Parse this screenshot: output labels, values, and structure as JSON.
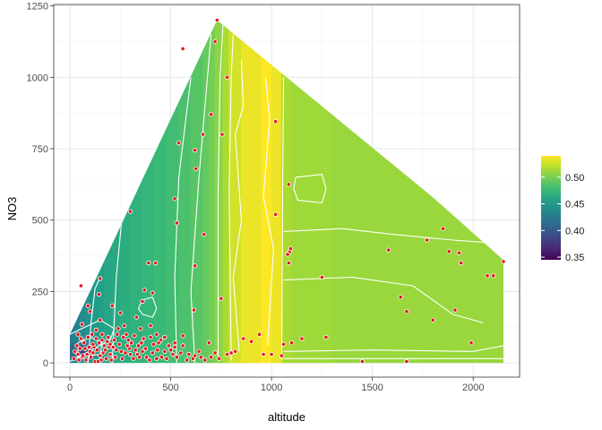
{
  "chart_data": {
    "type": "heatmap",
    "title": "",
    "xlabel": "altitude",
    "ylabel": "NO3",
    "xlim": [
      -80,
      2230
    ],
    "ylim": [
      -50,
      1255
    ],
    "x_ticks": [
      0,
      500,
      1000,
      1500,
      2000
    ],
    "y_ticks": [
      0,
      250,
      500,
      750,
      1000,
      1250
    ],
    "x_tick_labels": [
      "0",
      "500",
      "1000",
      "1500",
      "2000"
    ],
    "y_tick_labels": [
      "0",
      "250",
      "500",
      "750",
      "1000",
      "1250"
    ],
    "colorscale": "viridis",
    "color_range": [
      0.345,
      0.54
    ],
    "legend": {
      "placement": "right",
      "ticks": [
        0.35,
        0.4,
        0.45,
        0.5
      ],
      "tick_labels": [
        "0.35",
        "0.40",
        "0.45",
        "0.50"
      ]
    },
    "grid": true,
    "contour_color": "#ffffff",
    "point_fill": "#e31a1c",
    "point_stroke": "#ffffff",
    "hull": [
      [
        0,
        0
      ],
      [
        2150,
        0
      ],
      [
        2150,
        360
      ],
      [
        1800,
        580
      ],
      [
        730,
        1200
      ],
      [
        0,
        100
      ]
    ],
    "band_edges": [
      0,
      50,
      80,
      110,
      140,
      170,
      210,
      250,
      300,
      360,
      420,
      480,
      540,
      600,
      660,
      690,
      720,
      760,
      790,
      850,
      950,
      1000,
      1050,
      1060,
      1100,
      1300,
      1600,
      1900,
      2150
    ],
    "band_values": [
      0.43,
      0.44,
      0.445,
      0.45,
      0.455,
      0.46,
      0.463,
      0.466,
      0.47,
      0.474,
      0.477,
      0.48,
      0.484,
      0.488,
      0.493,
      0.498,
      0.506,
      0.515,
      0.527,
      0.535,
      0.54,
      0.535,
      0.52,
      0.515,
      0.512,
      0.51,
      0.51,
      0.51
    ],
    "low_spot": {
      "x": 65,
      "y": 45,
      "radius": 70,
      "min_value": 0.345
    },
    "points": [
      [
        730,
        1200
      ],
      [
        560,
        1100
      ],
      [
        720,
        1125
      ],
      [
        780,
        1000
      ],
      [
        700,
        870
      ],
      [
        660,
        800
      ],
      [
        755,
        800
      ],
      [
        540,
        770
      ],
      [
        620,
        745
      ],
      [
        625,
        680
      ],
      [
        1020,
        845
      ],
      [
        1085,
        625
      ],
      [
        520,
        575
      ],
      [
        300,
        530
      ],
      [
        1020,
        520
      ],
      [
        665,
        450
      ],
      [
        530,
        490
      ],
      [
        1090,
        390
      ],
      [
        1095,
        400
      ],
      [
        1085,
        350
      ],
      [
        1080,
        380
      ],
      [
        1770,
        430
      ],
      [
        1850,
        470
      ],
      [
        1580,
        395
      ],
      [
        1880,
        390
      ],
      [
        1930,
        385
      ],
      [
        1940,
        350
      ],
      [
        2150,
        355
      ],
      [
        2070,
        305
      ],
      [
        2100,
        305
      ],
      [
        1640,
        230
      ],
      [
        1800,
        150
      ],
      [
        1670,
        180
      ],
      [
        1910,
        185
      ],
      [
        1990,
        70
      ],
      [
        1250,
        300
      ],
      [
        390,
        350
      ],
      [
        425,
        350
      ],
      [
        370,
        255
      ],
      [
        410,
        245
      ],
      [
        360,
        215
      ],
      [
        620,
        340
      ],
      [
        615,
        185
      ],
      [
        750,
        225
      ],
      [
        940,
        100
      ],
      [
        900,
        75
      ],
      [
        860,
        85
      ],
      [
        780,
        30
      ],
      [
        1060,
        65
      ],
      [
        1150,
        85
      ],
      [
        1100,
        70
      ],
      [
        1270,
        90
      ],
      [
        960,
        30
      ],
      [
        1000,
        30
      ],
      [
        1050,
        25
      ],
      [
        1450,
        5
      ],
      [
        1670,
        5
      ],
      [
        820,
        40
      ],
      [
        800,
        35
      ],
      [
        720,
        35
      ],
      [
        690,
        70
      ],
      [
        640,
        40
      ],
      [
        620,
        25
      ],
      [
        580,
        10
      ],
      [
        40,
        100
      ],
      [
        60,
        135
      ],
      [
        55,
        270
      ],
      [
        150,
        295
      ],
      [
        145,
        240
      ],
      [
        90,
        200
      ],
      [
        100,
        180
      ],
      [
        150,
        150
      ],
      [
        210,
        200
      ],
      [
        250,
        175
      ],
      [
        240,
        120
      ],
      [
        270,
        130
      ],
      [
        280,
        100
      ],
      [
        290,
        80
      ],
      [
        320,
        95
      ],
      [
        340,
        60
      ],
      [
        360,
        40
      ],
      [
        380,
        20
      ],
      [
        410,
        35
      ],
      [
        430,
        15
      ],
      [
        450,
        80
      ],
      [
        470,
        40
      ],
      [
        490,
        60
      ],
      [
        510,
        30
      ],
      [
        530,
        20
      ],
      [
        550,
        35
      ],
      [
        40,
        30
      ],
      [
        60,
        20
      ],
      [
        80,
        10
      ],
      [
        100,
        40
      ],
      [
        120,
        55
      ],
      [
        130,
        85
      ],
      [
        150,
        25
      ],
      [
        170,
        60
      ],
      [
        180,
        15
      ],
      [
        200,
        30
      ],
      [
        220,
        80
      ],
      [
        230,
        45
      ],
      [
        260,
        15
      ],
      [
        300,
        30
      ],
      [
        35,
        60
      ],
      [
        70,
        70
      ],
      [
        90,
        90
      ],
      [
        110,
        100
      ],
      [
        130,
        115
      ],
      [
        160,
        100
      ],
      [
        190,
        90
      ],
      [
        45,
        10
      ],
      [
        75,
        50
      ],
      [
        105,
        20
      ],
      [
        125,
        5
      ],
      [
        145,
        70
      ],
      [
        165,
        35
      ],
      [
        185,
        75
      ],
      [
        205,
        10
      ],
      [
        215,
        55
      ],
      [
        245,
        65
      ],
      [
        275,
        35
      ],
      [
        295,
        50
      ],
      [
        315,
        15
      ],
      [
        335,
        30
      ],
      [
        355,
        70
      ],
      [
        375,
        50
      ],
      [
        395,
        10
      ],
      [
        415,
        65
      ],
      [
        435,
        45
      ],
      [
        455,
        20
      ],
      [
        20,
        15
      ],
      [
        25,
        40
      ],
      [
        55,
        85
      ],
      [
        85,
        30
      ],
      [
        115,
        65
      ],
      [
        135,
        45
      ],
      [
        155,
        10
      ],
      [
        175,
        45
      ],
      [
        195,
        55
      ],
      [
        225,
        20
      ],
      [
        265,
        90
      ],
      [
        285,
        60
      ],
      [
        305,
        70
      ],
      [
        325,
        45
      ],
      [
        345,
        20
      ],
      [
        365,
        85
      ],
      [
        400,
        90
      ],
      [
        440,
        70
      ],
      [
        480,
        15
      ],
      [
        500,
        45
      ],
      [
        520,
        55
      ],
      [
        560,
        60
      ],
      [
        590,
        30
      ],
      [
        610,
        15
      ],
      [
        650,
        20
      ],
      [
        670,
        10
      ],
      [
        700,
        20
      ],
      [
        740,
        15
      ],
      [
        50,
        50
      ],
      [
        65,
        25
      ],
      [
        95,
        55
      ],
      [
        115,
        35
      ],
      [
        140,
        5
      ],
      [
        160,
        80
      ],
      [
        200,
        65
      ],
      [
        235,
        100
      ],
      [
        255,
        40
      ],
      [
        330,
        160
      ],
      [
        350,
        120
      ],
      [
        400,
        130
      ],
      [
        430,
        100
      ],
      [
        470,
        90
      ],
      [
        520,
        70
      ],
      [
        560,
        95
      ]
    ]
  }
}
